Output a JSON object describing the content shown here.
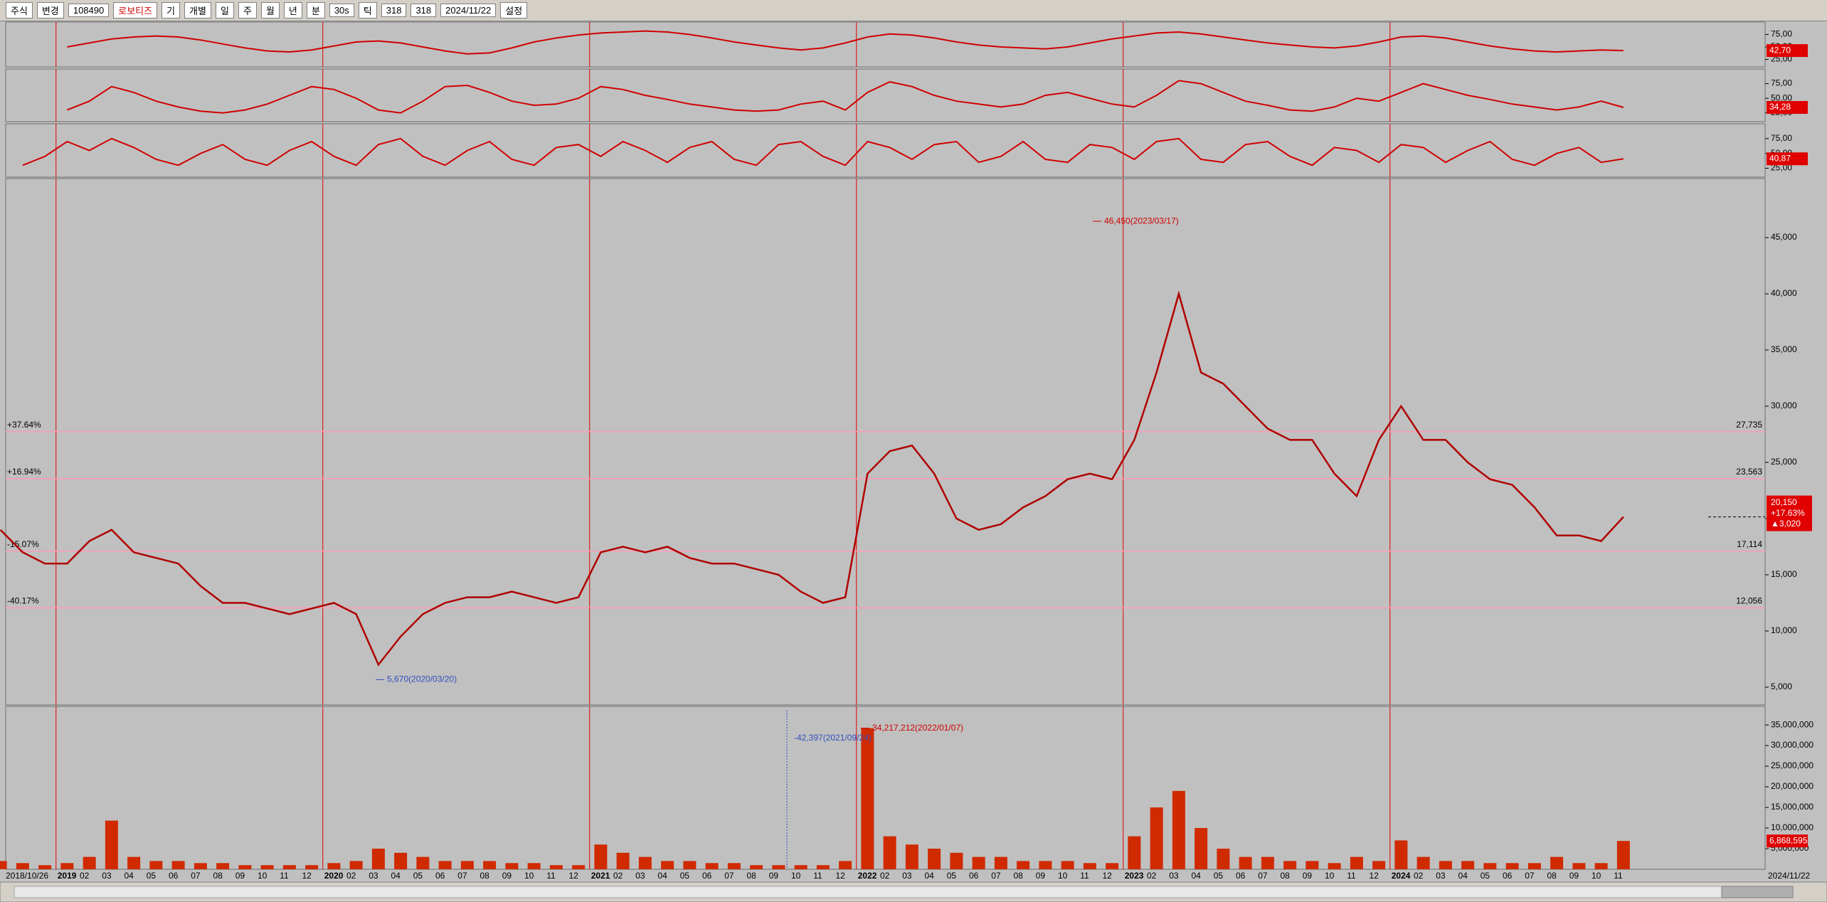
{
  "toolbar": {
    "items": [
      "주식",
      "변경",
      "108490",
      "로보티즈",
      "기",
      "개별",
      "일",
      "주",
      "월",
      "년",
      "분",
      "30s",
      "틱",
      "318",
      "318",
      "2024/11/22",
      "설정"
    ]
  },
  "chart_data": [
    {
      "type": "line",
      "color": "#d00000",
      "ylim": [
        10,
        100
      ],
      "yticks": [
        {
          "value": 75,
          "label": "75,00"
        },
        {
          "value": 50,
          "label": "50,00"
        },
        {
          "value": 25,
          "label": "25,00"
        }
      ],
      "values": [
        null,
        null,
        null,
        50,
        58,
        66,
        70,
        72,
        70,
        64,
        56,
        48,
        42,
        40,
        44,
        52,
        60,
        62,
        58,
        50,
        42,
        36,
        38,
        48,
        60,
        68,
        74,
        78,
        80,
        82,
        80,
        75,
        68,
        60,
        54,
        48,
        44,
        48,
        58,
        70,
        76,
        74,
        68,
        60,
        54,
        50,
        48,
        46,
        50,
        58,
        66,
        72,
        78,
        80,
        76,
        70,
        64,
        58,
        54,
        50,
        48,
        52,
        60,
        70,
        72,
        68,
        60,
        52,
        46,
        42,
        40,
        42,
        44,
        42.7
      ],
      "last_value_label": "42,70"
    },
    {
      "type": "line",
      "color": "#d00000",
      "ylim": [
        10,
        100
      ],
      "yticks": [
        {
          "value": 75,
          "label": "75,00"
        },
        {
          "value": 50,
          "label": "50,00"
        },
        {
          "value": 25,
          "label": "25,00"
        }
      ],
      "values": [
        null,
        null,
        null,
        30,
        45,
        70,
        60,
        45,
        35,
        28,
        25,
        30,
        40,
        55,
        70,
        65,
        50,
        30,
        25,
        45,
        70,
        72,
        60,
        45,
        38,
        40,
        50,
        70,
        65,
        55,
        48,
        40,
        35,
        30,
        28,
        30,
        40,
        45,
        30,
        60,
        78,
        70,
        55,
        45,
        40,
        35,
        40,
        55,
        60,
        50,
        40,
        35,
        55,
        80,
        75,
        60,
        45,
        38,
        30,
        28,
        35,
        50,
        45,
        60,
        75,
        65,
        55,
        48,
        40,
        35,
        30,
        35,
        45,
        34.28
      ],
      "last_value_label": "34,28"
    },
    {
      "type": "line",
      "color": "#d00000",
      "ylim": [
        10,
        100
      ],
      "yticks": [
        {
          "value": 75,
          "label": "75,00"
        },
        {
          "value": 50,
          "label": "50,00"
        },
        {
          "value": 25,
          "label": "25,00"
        }
      ],
      "values": [
        null,
        30,
        45,
        70,
        55,
        75,
        60,
        40,
        30,
        50,
        65,
        40,
        30,
        55,
        70,
        45,
        30,
        65,
        75,
        45,
        30,
        55,
        70,
        40,
        30,
        60,
        65,
        45,
        70,
        55,
        35,
        60,
        70,
        40,
        30,
        65,
        70,
        45,
        30,
        70,
        60,
        40,
        65,
        70,
        35,
        45,
        70,
        40,
        35,
        65,
        60,
        40,
        70,
        75,
        40,
        35,
        65,
        70,
        45,
        30,
        60,
        55,
        35,
        65,
        60,
        35,
        55,
        70,
        40,
        30,
        50,
        60,
        35,
        40.87
      ],
      "last_value_label": "40,87"
    },
    {
      "type": "line",
      "color": "#b00000",
      "ylim": [
        3418,
        50253
      ],
      "yticks": [
        {
          "value": 5000,
          "label": "5,000"
        },
        {
          "value": 10000,
          "label": "10,000"
        },
        {
          "value": 15000,
          "label": "15,000"
        },
        {
          "value": 20000,
          "label": "20,000"
        },
        {
          "value": 25000,
          "label": "25,000"
        },
        {
          "value": 30000,
          "label": "30,000"
        },
        {
          "value": 35000,
          "label": "35,000"
        },
        {
          "value": 40000,
          "label": "40,000"
        },
        {
          "value": 45000,
          "label": "45,000"
        }
      ],
      "values": [
        19000,
        17000,
        16000,
        16000,
        18000,
        19000,
        17000,
        16500,
        16000,
        14000,
        12500,
        12500,
        12000,
        11500,
        12000,
        12500,
        11500,
        7000,
        9500,
        11500,
        12500,
        13000,
        13000,
        13500,
        13000,
        12500,
        13000,
        17000,
        17500,
        17000,
        17500,
        16500,
        16000,
        16000,
        15500,
        15000,
        13500,
        12500,
        13000,
        24000,
        26000,
        26500,
        24000,
        20000,
        19000,
        19500,
        21000,
        22000,
        23500,
        24000,
        23500,
        27000,
        33000,
        40000,
        33000,
        32000,
        30000,
        28000,
        27000,
        27000,
        24000,
        22000,
        27000,
        30000,
        27000,
        27000,
        25000,
        23500,
        23000,
        21000,
        18500,
        18500,
        18000,
        20150
      ],
      "levels": [
        {
          "value": 27735,
          "label": "27,735",
          "change": "+37.64%"
        },
        {
          "value": 23563,
          "label": "23,563",
          "change": "+16.94%"
        },
        {
          "value": 17114,
          "label": "17,114",
          "change": "-15.07%"
        },
        {
          "value": 12056,
          "label": "12,056",
          "change": "-40.17%"
        }
      ],
      "annotations": [
        {
          "value": 46450,
          "text": "46,450(2023/03/17)"
        },
        {
          "value": 5670,
          "text": "5,670(2020/03/20)"
        }
      ],
      "last_price": {
        "value": 20150,
        "label": "20,150",
        "change": "+17.63%",
        "diff": "▲3,020"
      }
    },
    {
      "type": "bar",
      "color": "#d02a00",
      "ylim": [
        0,
        39500000
      ],
      "yticks": [
        {
          "value": 5000000,
          "label": "5,000,000"
        },
        {
          "value": 10000000,
          "label": "10,000,000"
        },
        {
          "value": 15000000,
          "label": "15,000,000"
        },
        {
          "value": 20000000,
          "label": "20,000,000"
        },
        {
          "value": 25000000,
          "label": "25,000,000"
        },
        {
          "value": 30000000,
          "label": "30,000,000"
        },
        {
          "value": 35000000,
          "label": "35,000,000"
        }
      ],
      "categories": [
        "2018/10/26",
        null,
        null,
        "2019",
        "02",
        "03",
        "04",
        "05",
        "06",
        "07",
        "08",
        "09",
        "10",
        "11",
        "12",
        "2020",
        "02",
        "03",
        "04",
        "05",
        "06",
        "07",
        "08",
        "09",
        "10",
        "11",
        "12",
        "2021",
        "02",
        "03",
        "04",
        "05",
        "06",
        "07",
        "08",
        "09",
        "10",
        "11",
        "12",
        "2022",
        "02",
        "03",
        "04",
        "05",
        "06",
        "07",
        "08",
        "09",
        "10",
        "11",
        "12",
        "2023",
        "02",
        "03",
        "04",
        "05",
        "06",
        "07",
        "08",
        "09",
        "10",
        "11",
        "12",
        "2024",
        "02",
        "03",
        "04",
        "05",
        "06",
        "07",
        "08",
        "09",
        "10",
        "11"
      ],
      "values": [
        2000000,
        1500000,
        1000000,
        1500000,
        3000000,
        11800000,
        3000000,
        2000000,
        2000000,
        1500000,
        1500000,
        1000000,
        1000000,
        1000000,
        1000000,
        1500000,
        2000000,
        5000000,
        4000000,
        3000000,
        2000000,
        2000000,
        2000000,
        1500000,
        1500000,
        1000000,
        1000000,
        6000000,
        4000000,
        3000000,
        2000000,
        2000000,
        1500000,
        1500000,
        1000000,
        1000000,
        1000000,
        1000000,
        2000000,
        34217212,
        8000000,
        6000000,
        5000000,
        4000000,
        3000000,
        3000000,
        2000000,
        2000000,
        2000000,
        1500000,
        1500000,
        8000000,
        15000000,
        19000000,
        10000000,
        5000000,
        3000000,
        3000000,
        2000000,
        2000000,
        1500000,
        3000000,
        2000000,
        7000000,
        3000000,
        2000000,
        2000000,
        1500000,
        1500000,
        1500000,
        3000000,
        1500000,
        1500000,
        6868595
      ],
      "last_value_label": "6,868,595",
      "annotations": [
        {
          "value": 34217212,
          "text": "34,217,212(2022/01/07)"
        }
      ],
      "notes": [
        "-42,397(2021/09/24)"
      ],
      "x_end_label": "2024/11/22"
    }
  ]
}
